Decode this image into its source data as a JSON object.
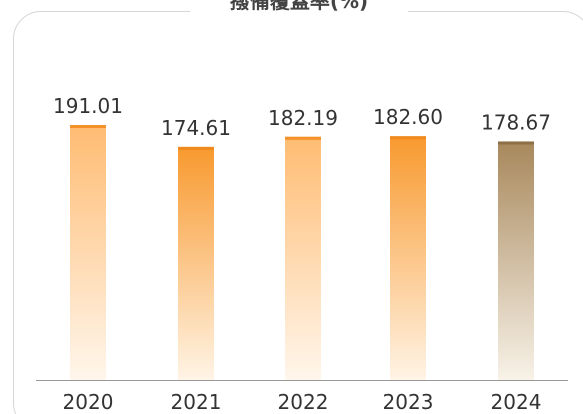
{
  "chart_data": {
    "type": "bar",
    "title": "撥備覆蓋率(%)",
    "categories": [
      "2020",
      "2021",
      "2022",
      "2023",
      "2024"
    ],
    "values": [
      191.01,
      174.61,
      182.19,
      182.6,
      178.67
    ],
    "value_labels": [
      "191.01",
      "174.61",
      "182.19",
      "182.60",
      "178.67"
    ],
    "ylim": [
      0,
      191.01
    ],
    "xlabel": "",
    "ylabel": "",
    "grid": false,
    "bar_colors": [
      {
        "top": "#ffbc72",
        "bottom": "#fff6ec",
        "cap": "#f5912a"
      },
      {
        "top": "#f8992e",
        "bottom": "#fff4e6",
        "cap": "#f08a1e"
      },
      {
        "top": "#ffbc72",
        "bottom": "#fff6ec",
        "cap": "#f5912a"
      },
      {
        "top": "#f8992e",
        "bottom": "#fff4e6",
        "cap": "#f08a1e"
      },
      {
        "top": "#a8885c",
        "bottom": "#f8f2e8",
        "cap": "#8d7045"
      }
    ],
    "axis_color": "#999999",
    "frame_color": "#d6d6d6"
  }
}
